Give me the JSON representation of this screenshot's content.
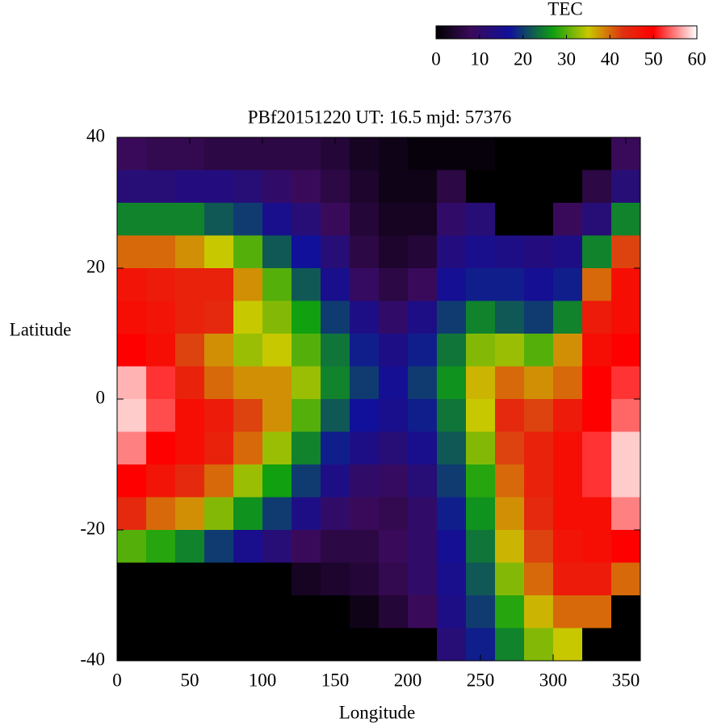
{
  "chart_data": {
    "type": "heatmap",
    "title": "PBf20151220  UT: 16.5  mjd: 57376",
    "x_label": "Longitude",
    "y_label": "Latitude",
    "colorbar_label": "TEC",
    "xlim": [
      0,
      360
    ],
    "ylim": [
      -40,
      40
    ],
    "xticks": [
      0,
      50,
      100,
      150,
      200,
      250,
      300,
      350
    ],
    "yticks": [
      40,
      20,
      0,
      -20,
      -40
    ],
    "clim": [
      0,
      60
    ],
    "cticks": [
      0,
      10,
      20,
      30,
      40,
      50,
      60
    ],
    "colorscale": [
      [
        0,
        "#000000"
      ],
      [
        8,
        "#3a0a5a"
      ],
      [
        17,
        "#10109a"
      ],
      [
        27,
        "#10a010"
      ],
      [
        35,
        "#c8c800"
      ],
      [
        43,
        "#e03010"
      ],
      [
        50,
        "#ff0000"
      ],
      [
        60,
        "#ffffff"
      ]
    ],
    "x": [
      10,
      30,
      50,
      70,
      90,
      110,
      130,
      150,
      170,
      190,
      210,
      230,
      250,
      270,
      290,
      310,
      330,
      350
    ],
    "y": [
      37.5,
      32.5,
      27.5,
      22.5,
      17.5,
      12.5,
      7.5,
      2.5,
      -2.5,
      -7.5,
      -12.5,
      -17.5,
      -22.5,
      -27.5,
      -32.5,
      -37.5
    ],
    "z": [
      [
        8,
        7,
        7,
        6,
        6,
        6,
        6,
        5,
        3,
        2,
        1,
        1,
        1,
        0,
        0,
        0,
        0,
        8
      ],
      [
        12,
        12,
        13,
        13,
        12,
        10,
        8,
        6,
        4,
        2,
        2,
        6,
        0,
        0,
        0,
        0,
        6,
        12
      ],
      [
        25,
        25,
        25,
        22,
        20,
        15,
        12,
        8,
        5,
        3,
        3,
        10,
        12,
        0,
        0,
        8,
        12,
        25
      ],
      [
        40,
        40,
        38,
        35,
        30,
        22,
        17,
        12,
        6,
        4,
        5,
        13,
        15,
        14,
        13,
        14,
        25,
        42
      ],
      [
        47,
        46,
        45,
        45,
        38,
        30,
        22,
        15,
        9,
        6,
        8,
        16,
        18,
        18,
        16,
        18,
        40,
        48
      ],
      [
        48,
        47,
        45,
        44,
        35,
        32,
        27,
        20,
        14,
        10,
        14,
        20,
        25,
        22,
        20,
        25,
        46,
        48
      ],
      [
        50,
        48,
        42,
        38,
        33,
        35,
        30,
        24,
        18,
        14,
        18,
        24,
        32,
        33,
        30,
        38,
        48,
        50
      ],
      [
        57,
        52,
        45,
        40,
        38,
        38,
        33,
        25,
        20,
        16,
        20,
        26,
        36,
        40,
        38,
        40,
        50,
        52
      ],
      [
        58,
        53,
        48,
        46,
        42,
        38,
        30,
        22,
        17,
        15,
        18,
        24,
        35,
        44,
        42,
        46,
        50,
        54
      ],
      [
        55,
        50,
        48,
        45,
        40,
        33,
        25,
        18,
        14,
        12,
        15,
        22,
        32,
        42,
        45,
        48,
        52,
        58
      ],
      [
        50,
        47,
        44,
        40,
        33,
        27,
        20,
        14,
        10,
        9,
        12,
        20,
        28,
        40,
        45,
        48,
        52,
        58
      ],
      [
        44,
        40,
        38,
        32,
        26,
        20,
        14,
        10,
        8,
        7,
        10,
        18,
        26,
        38,
        44,
        48,
        48,
        55
      ],
      [
        30,
        28,
        25,
        20,
        15,
        12,
        8,
        6,
        6,
        8,
        10,
        16,
        24,
        36,
        42,
        47,
        48,
        50
      ],
      [
        0,
        0,
        0,
        0,
        0,
        0,
        3,
        4,
        5,
        7,
        10,
        15,
        22,
        32,
        40,
        46,
        46,
        40
      ],
      [
        0,
        0,
        0,
        0,
        0,
        0,
        0,
        0,
        2,
        5,
        8,
        14,
        20,
        28,
        36,
        40,
        40,
        0
      ],
      [
        0,
        0,
        0,
        0,
        0,
        0,
        0,
        0,
        0,
        0,
        0,
        12,
        18,
        25,
        32,
        35,
        0,
        0
      ]
    ]
  }
}
